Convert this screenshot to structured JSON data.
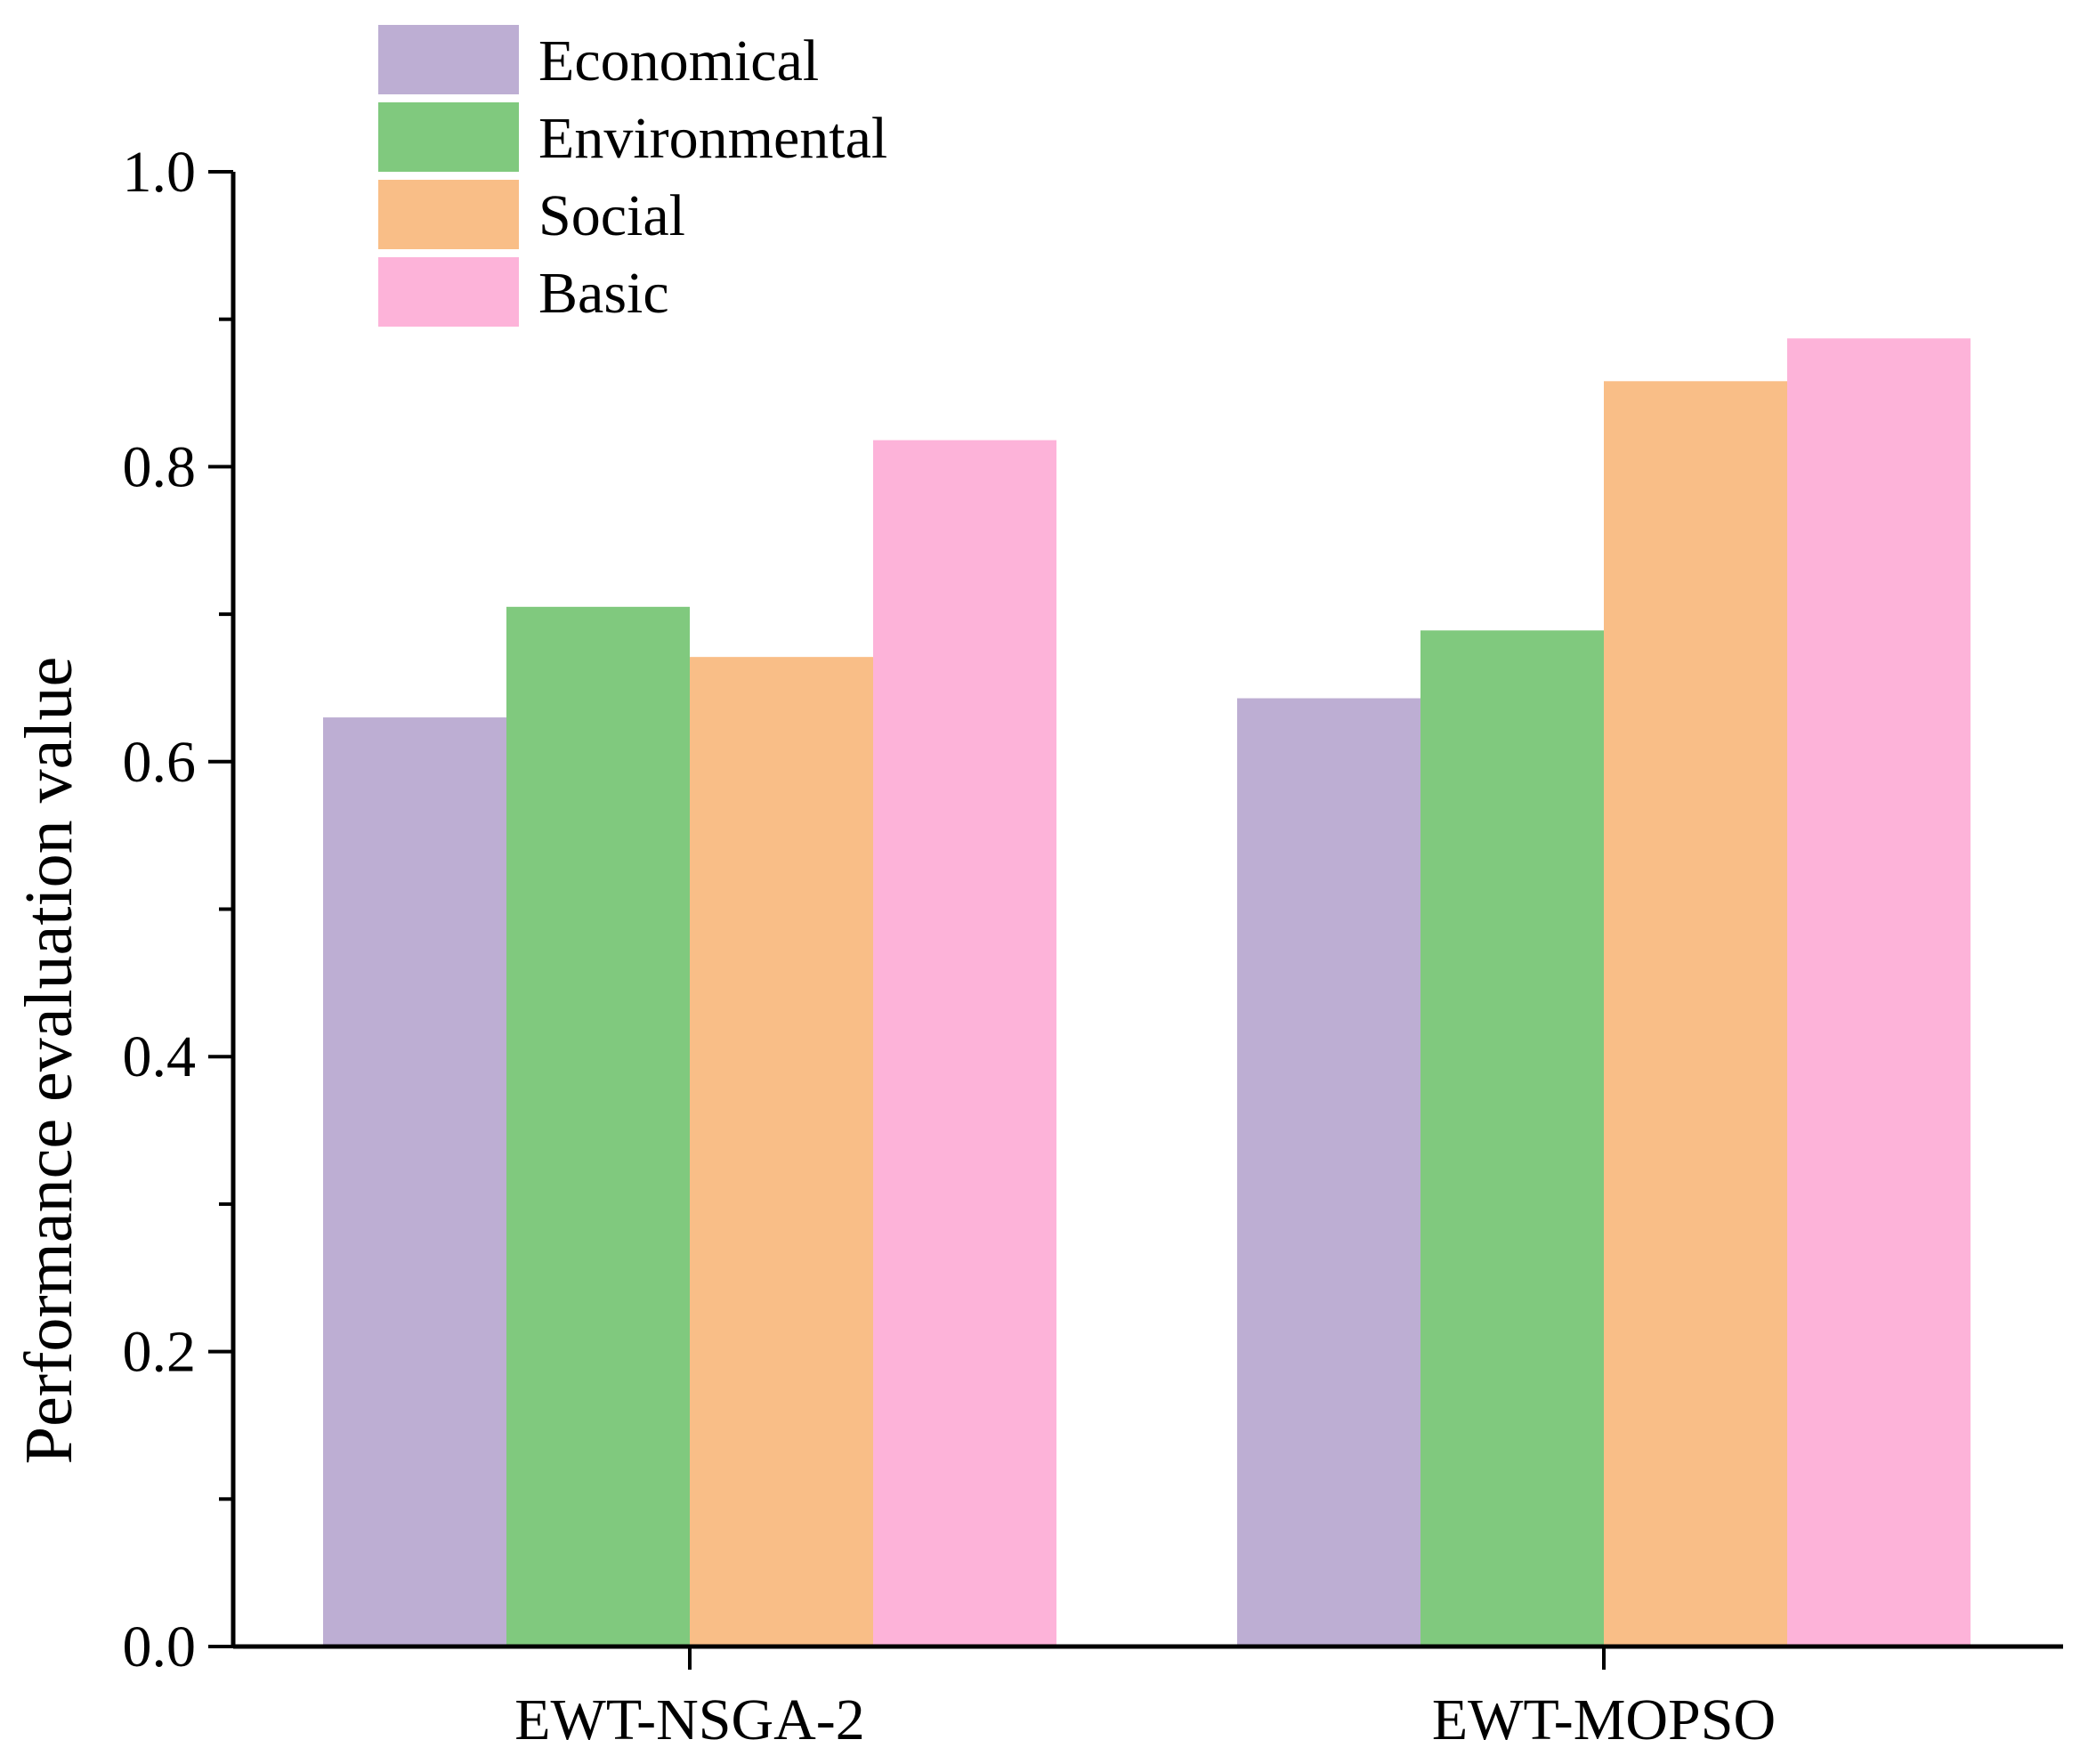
{
  "chart_data": {
    "type": "bar",
    "categories": [
      "EWT-NSGA-2",
      "EWT-MOPSO"
    ],
    "series": [
      {
        "name": "Economical",
        "values": [
          0.63,
          0.643
        ],
        "color": "#bdaed3"
      },
      {
        "name": "Environmental",
        "values": [
          0.705,
          0.689
        ],
        "color": "#80c97e"
      },
      {
        "name": "Social",
        "values": [
          0.671,
          0.858
        ],
        "color": "#f9be87"
      },
      {
        "name": "Basic",
        "values": [
          0.818,
          0.887
        ],
        "color": "#fdb3d9"
      }
    ],
    "xlabel": "",
    "ylabel": "Performance evaluation value",
    "ylim": [
      0,
      1.0
    ],
    "yticks": [
      "0.0",
      "0.2",
      "0.4",
      "0.6",
      "0.8",
      "1.0"
    ],
    "ytick_values": [
      0,
      0.2,
      0.4,
      0.6,
      0.8,
      1.0
    ],
    "grid": false,
    "legend_position": "top-left"
  }
}
